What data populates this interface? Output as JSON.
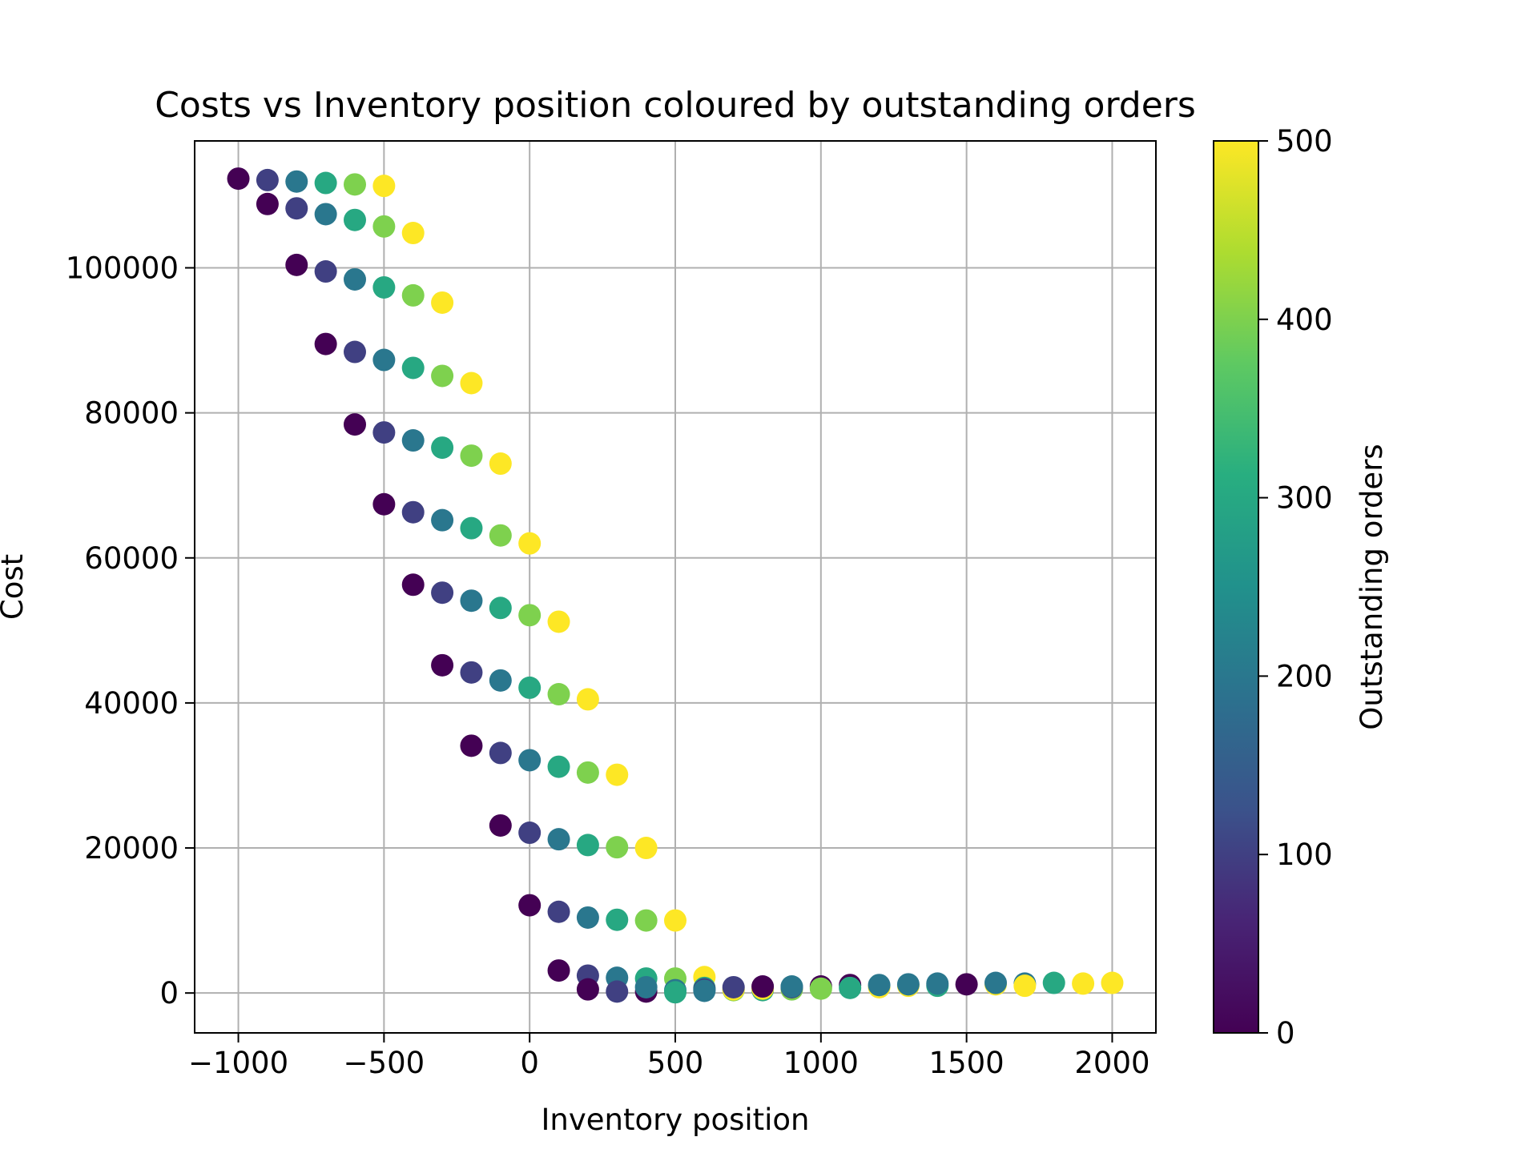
{
  "chart_data": {
    "type": "scatter",
    "title": "Costs vs Inventory position coloured by outstanding orders",
    "xlabel": "Inventory position",
    "ylabel": "Cost",
    "xlim": [
      -1150,
      2150
    ],
    "ylim": [
      -5500,
      117500
    ],
    "xticks": [
      -1000,
      -500,
      0,
      500,
      1000,
      1500,
      2000
    ],
    "xtick_labels": [
      "−1000",
      "−500",
      "0",
      "500",
      "1000",
      "1500",
      "2000"
    ],
    "yticks": [
      0,
      20000,
      40000,
      60000,
      80000,
      100000
    ],
    "ytick_labels": [
      "0",
      "20000",
      "40000",
      "60000",
      "80000",
      "100000"
    ],
    "grid": true,
    "colormap": "viridis",
    "colorbar": {
      "label": "Outstanding orders",
      "range": [
        0,
        500
      ],
      "ticks": [
        0,
        100,
        200,
        300,
        400,
        500
      ],
      "tick_labels": [
        "0",
        "100",
        "200",
        "300",
        "400",
        "500"
      ]
    },
    "points": [
      {
        "x": -1000,
        "y": 112300,
        "c": 0
      },
      {
        "x": -900,
        "y": 112100,
        "c": 100
      },
      {
        "x": -800,
        "y": 111900,
        "c": 200
      },
      {
        "x": -700,
        "y": 111700,
        "c": 300
      },
      {
        "x": -600,
        "y": 111500,
        "c": 400
      },
      {
        "x": -500,
        "y": 111300,
        "c": 500
      },
      {
        "x": -900,
        "y": 108800,
        "c": 0
      },
      {
        "x": -800,
        "y": 108200,
        "c": 100
      },
      {
        "x": -700,
        "y": 107400,
        "c": 200
      },
      {
        "x": -600,
        "y": 106600,
        "c": 300
      },
      {
        "x": -500,
        "y": 105700,
        "c": 400
      },
      {
        "x": -400,
        "y": 104800,
        "c": 500
      },
      {
        "x": -800,
        "y": 100400,
        "c": 0
      },
      {
        "x": -700,
        "y": 99500,
        "c": 100
      },
      {
        "x": -600,
        "y": 98400,
        "c": 200
      },
      {
        "x": -500,
        "y": 97300,
        "c": 300
      },
      {
        "x": -400,
        "y": 96200,
        "c": 400
      },
      {
        "x": -300,
        "y": 95200,
        "c": 500
      },
      {
        "x": -700,
        "y": 89500,
        "c": 0
      },
      {
        "x": -600,
        "y": 88400,
        "c": 100
      },
      {
        "x": -500,
        "y": 87300,
        "c": 200
      },
      {
        "x": -400,
        "y": 86200,
        "c": 300
      },
      {
        "x": -300,
        "y": 85100,
        "c": 400
      },
      {
        "x": -200,
        "y": 84100,
        "c": 500
      },
      {
        "x": -600,
        "y": 78400,
        "c": 0
      },
      {
        "x": -500,
        "y": 77300,
        "c": 100
      },
      {
        "x": -400,
        "y": 76200,
        "c": 200
      },
      {
        "x": -300,
        "y": 75200,
        "c": 300
      },
      {
        "x": -200,
        "y": 74100,
        "c": 400
      },
      {
        "x": -100,
        "y": 73000,
        "c": 500
      },
      {
        "x": -500,
        "y": 67400,
        "c": 0
      },
      {
        "x": -400,
        "y": 66300,
        "c": 100
      },
      {
        "x": -300,
        "y": 65200,
        "c": 200
      },
      {
        "x": -200,
        "y": 64100,
        "c": 300
      },
      {
        "x": -100,
        "y": 63100,
        "c": 400
      },
      {
        "x": 0,
        "y": 62000,
        "c": 500
      },
      {
        "x": -400,
        "y": 56300,
        "c": 0
      },
      {
        "x": -300,
        "y": 55200,
        "c": 100
      },
      {
        "x": -200,
        "y": 54100,
        "c": 200
      },
      {
        "x": -100,
        "y": 53100,
        "c": 300
      },
      {
        "x": 0,
        "y": 52100,
        "c": 400
      },
      {
        "x": 100,
        "y": 51200,
        "c": 500
      },
      {
        "x": -300,
        "y": 45200,
        "c": 0
      },
      {
        "x": -200,
        "y": 44200,
        "c": 100
      },
      {
        "x": -100,
        "y": 43100,
        "c": 200
      },
      {
        "x": 0,
        "y": 42100,
        "c": 300
      },
      {
        "x": 100,
        "y": 41200,
        "c": 400
      },
      {
        "x": 200,
        "y": 40500,
        "c": 500
      },
      {
        "x": -200,
        "y": 34100,
        "c": 0
      },
      {
        "x": -100,
        "y": 33100,
        "c": 100
      },
      {
        "x": 0,
        "y": 32100,
        "c": 200
      },
      {
        "x": 100,
        "y": 31200,
        "c": 300
      },
      {
        "x": 200,
        "y": 30400,
        "c": 400
      },
      {
        "x": 300,
        "y": 30100,
        "c": 500
      },
      {
        "x": -100,
        "y": 23100,
        "c": 0
      },
      {
        "x": 0,
        "y": 22100,
        "c": 100
      },
      {
        "x": 100,
        "y": 21200,
        "c": 200
      },
      {
        "x": 200,
        "y": 20400,
        "c": 300
      },
      {
        "x": 300,
        "y": 20100,
        "c": 400
      },
      {
        "x": 400,
        "y": 20000,
        "c": 500
      },
      {
        "x": 0,
        "y": 12100,
        "c": 0
      },
      {
        "x": 100,
        "y": 11200,
        "c": 100
      },
      {
        "x": 200,
        "y": 10400,
        "c": 200
      },
      {
        "x": 300,
        "y": 10100,
        "c": 300
      },
      {
        "x": 400,
        "y": 10000,
        "c": 400
      },
      {
        "x": 500,
        "y": 10000,
        "c": 500
      },
      {
        "x": 100,
        "y": 3100,
        "c": 0
      },
      {
        "x": 200,
        "y": 2400,
        "c": 100
      },
      {
        "x": 300,
        "y": 2100,
        "c": 200
      },
      {
        "x": 400,
        "y": 2000,
        "c": 300
      },
      {
        "x": 500,
        "y": 2000,
        "c": 400
      },
      {
        "x": 600,
        "y": 2200,
        "c": 500
      },
      {
        "x": 200,
        "y": 500,
        "c": 0
      },
      {
        "x": 300,
        "y": 200,
        "c": 100
      },
      {
        "x": 400,
        "y": 200,
        "c": 0
      },
      {
        "x": 400,
        "y": 800,
        "c": 200
      },
      {
        "x": 500,
        "y": 400,
        "c": 200
      },
      {
        "x": 500,
        "y": 100,
        "c": 300
      },
      {
        "x": 600,
        "y": 700,
        "c": 300
      },
      {
        "x": 600,
        "y": 500,
        "c": 100
      },
      {
        "x": 600,
        "y": 300,
        "c": 200
      },
      {
        "x": 700,
        "y": 400,
        "c": 400
      },
      {
        "x": 700,
        "y": 500,
        "c": 500
      },
      {
        "x": 700,
        "y": 800,
        "c": 100
      },
      {
        "x": 800,
        "y": 400,
        "c": 300
      },
      {
        "x": 800,
        "y": 600,
        "c": 500
      },
      {
        "x": 800,
        "y": 900,
        "c": 0
      },
      {
        "x": 900,
        "y": 500,
        "c": 400
      },
      {
        "x": 900,
        "y": 800,
        "c": 100
      },
      {
        "x": 900,
        "y": 900,
        "c": 200
      },
      {
        "x": 1000,
        "y": 900,
        "c": 0
      },
      {
        "x": 1000,
        "y": 600,
        "c": 400
      },
      {
        "x": 1100,
        "y": 1100,
        "c": 0
      },
      {
        "x": 1100,
        "y": 700,
        "c": 300
      },
      {
        "x": 1200,
        "y": 800,
        "c": 500
      },
      {
        "x": 1200,
        "y": 1100,
        "c": 200
      },
      {
        "x": 1300,
        "y": 1000,
        "c": 500
      },
      {
        "x": 1300,
        "y": 1200,
        "c": 200
      },
      {
        "x": 1400,
        "y": 1000,
        "c": 300
      },
      {
        "x": 1400,
        "y": 1300,
        "c": 200
      },
      {
        "x": 1500,
        "y": 1200,
        "c": 0
      },
      {
        "x": 1600,
        "y": 1200,
        "c": 500
      },
      {
        "x": 1600,
        "y": 1400,
        "c": 200
      },
      {
        "x": 1700,
        "y": 1300,
        "c": 200
      },
      {
        "x": 1700,
        "y": 1000,
        "c": 500
      },
      {
        "x": 1800,
        "y": 1400,
        "c": 300
      },
      {
        "x": 1900,
        "y": 1300,
        "c": 500
      },
      {
        "x": 2000,
        "y": 1400,
        "c": 500
      }
    ]
  }
}
